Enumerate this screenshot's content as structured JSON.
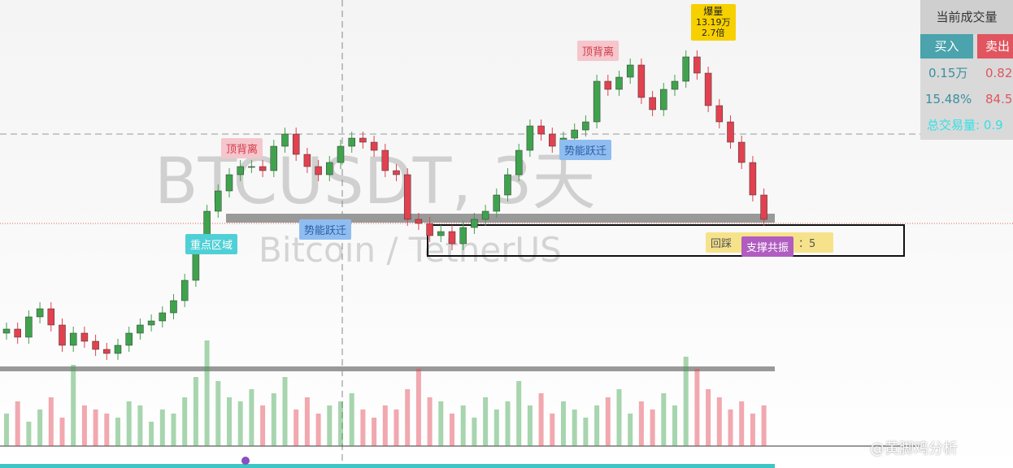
{
  "watermark": {
    "symbol": "BTCUSDT, 3天",
    "pair": "Bitcoin / TetherUS"
  },
  "annotations": {
    "top_divergence_1": "顶背离",
    "top_divergence_2": "顶背离",
    "key_zone": "重点区域",
    "momentum_1": "势能跃迁",
    "momentum_2": "势能跃迁",
    "volume_burst": {
      "title": "爆量",
      "amount": "13.19万",
      "ratio": "2.7倍"
    },
    "pullback": {
      "label": "回踩",
      "count": "：5"
    },
    "support": "支撑共振"
  },
  "panel": {
    "header": "当前成交量",
    "buy": "买入",
    "sell": "卖出",
    "buy_amount": "0.15万",
    "sell_amount": "0.82",
    "buy_pct": "15.48%",
    "sell_pct": "84.5",
    "total": "总交易量: 0.9"
  },
  "credit": "@黄脚鸡分析",
  "chart": {
    "up_color": "#3fa34d",
    "down_color": "#e2414f",
    "opens": [
      60,
      65,
      55,
      80,
      90,
      70,
      45,
      60,
      50,
      40,
      35,
      45,
      60,
      70,
      75,
      85,
      100,
      125,
      170,
      210,
      235,
      255,
      265,
      265,
      260,
      290,
      305,
      280,
      265,
      255,
      270,
      290,
      300,
      295,
      285,
      260,
      255,
      200,
      195,
      180,
      185,
      170,
      190,
      200,
      210,
      230,
      255,
      285,
      315,
      305,
      290,
      300,
      310,
      320,
      370,
      360,
      375,
      390,
      350,
      335,
      360,
      370,
      400,
      380,
      340,
      320,
      295,
      270,
      230
    ],
    "closes": [
      65,
      55,
      80,
      90,
      70,
      45,
      60,
      50,
      40,
      35,
      45,
      60,
      70,
      75,
      85,
      100,
      125,
      170,
      210,
      235,
      255,
      265,
      265,
      260,
      290,
      305,
      280,
      265,
      255,
      270,
      290,
      300,
      295,
      285,
      260,
      255,
      200,
      195,
      180,
      185,
      170,
      190,
      200,
      210,
      230,
      255,
      285,
      315,
      305,
      290,
      300,
      310,
      320,
      370,
      360,
      375,
      390,
      350,
      335,
      360,
      370,
      400,
      380,
      340,
      320,
      295,
      270,
      230,
      200
    ],
    "volumes": [
      40,
      55,
      30,
      45,
      60,
      35,
      100,
      50,
      45,
      40,
      35,
      55,
      50,
      30,
      45,
      40,
      60,
      85,
      130,
      80,
      60,
      55,
      70,
      50,
      65,
      85,
      45,
      60,
      40,
      50,
      55,
      65,
      45,
      35,
      50,
      45,
      70,
      95,
      60,
      55,
      40,
      50,
      35,
      60,
      45,
      55,
      80,
      50,
      65,
      40,
      55,
      45,
      35,
      50,
      60,
      70,
      40,
      55,
      45,
      65,
      50,
      110,
      95,
      70,
      60,
      45,
      55,
      40,
      50
    ]
  }
}
